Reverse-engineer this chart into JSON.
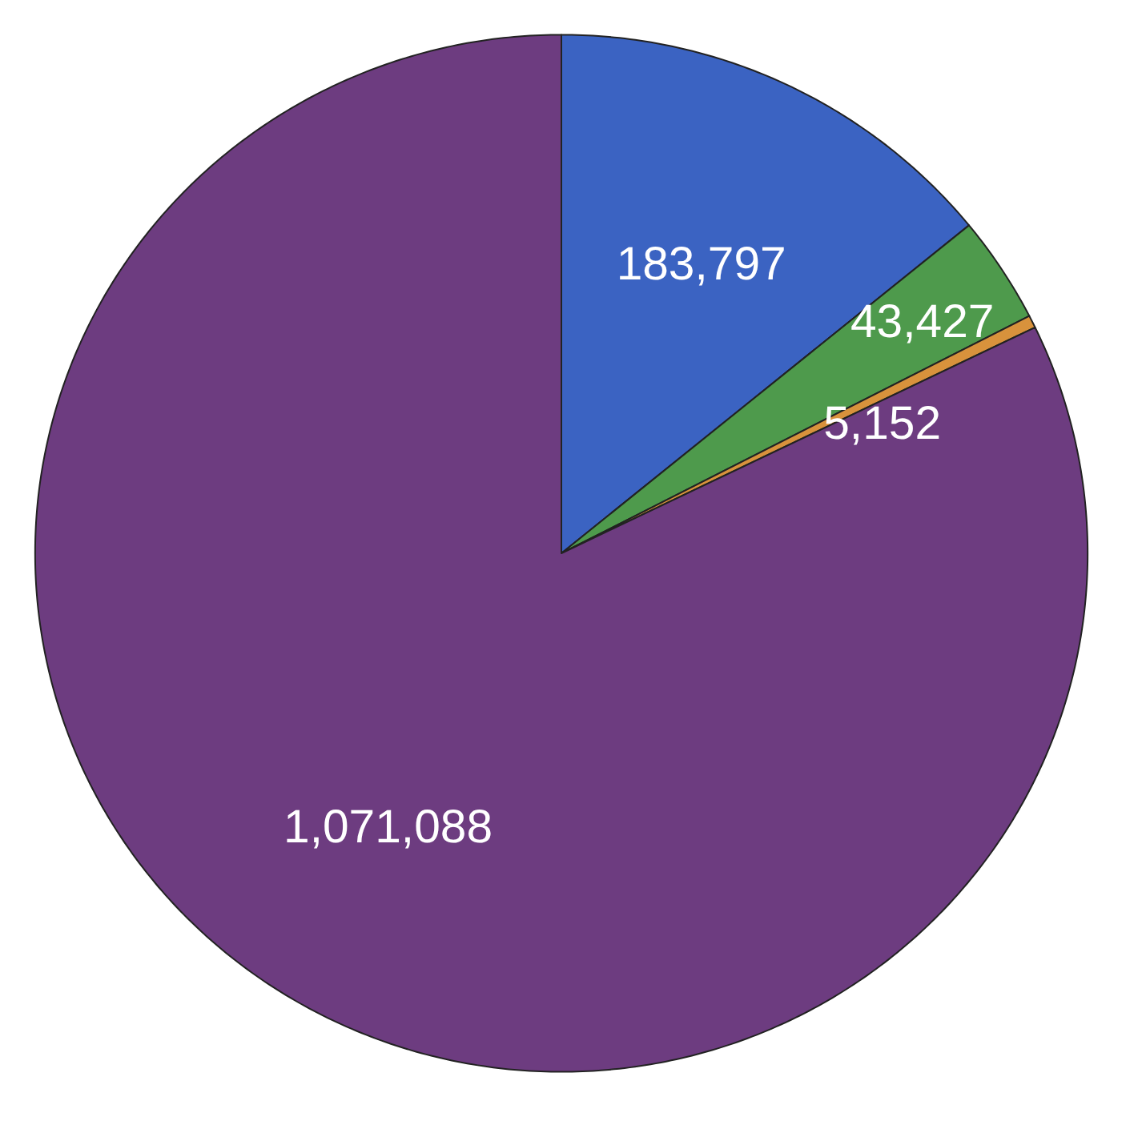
{
  "chart_data": {
    "type": "pie",
    "categories": [
      null,
      null,
      null,
      null
    ],
    "values": [
      183797,
      43427,
      5152,
      1071088
    ],
    "colors": [
      "#3b63c2",
      "#4e9a4c",
      "#d8923c",
      "#6d3c80"
    ],
    "value_labels": [
      "183,797",
      "43,427",
      "5,152",
      "1,071,088"
    ]
  }
}
